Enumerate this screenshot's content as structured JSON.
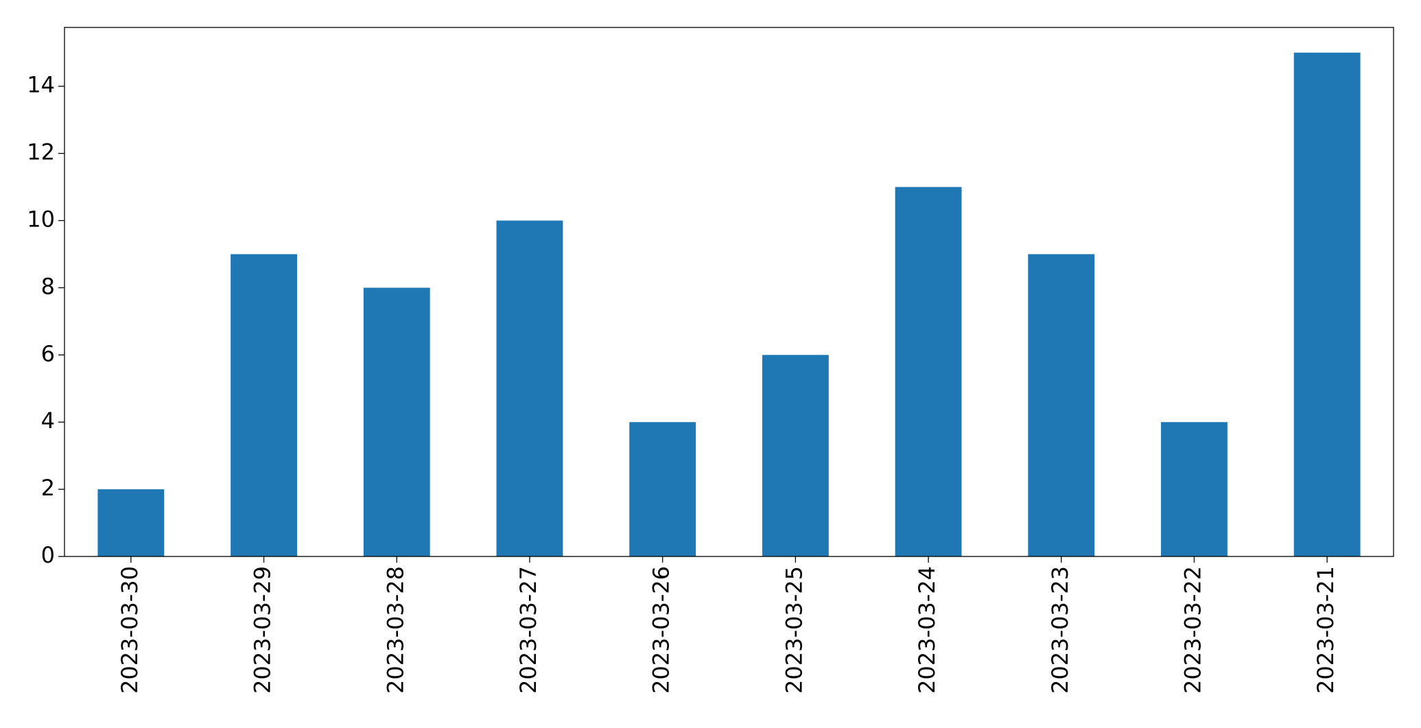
{
  "chart_data": {
    "type": "bar",
    "categories": [
      "2023-03-30",
      "2023-03-29",
      "2023-03-28",
      "2023-03-27",
      "2023-03-26",
      "2023-03-25",
      "2023-03-24",
      "2023-03-23",
      "2023-03-22",
      "2023-03-21"
    ],
    "values": [
      2,
      9,
      8,
      10,
      4,
      6,
      11,
      9,
      4,
      15
    ],
    "color": "#1f77b4",
    "ylim": [
      0,
      15.75
    ],
    "yticks": [
      0,
      2,
      4,
      6,
      8,
      10,
      12,
      14
    ],
    "grid": false
  }
}
